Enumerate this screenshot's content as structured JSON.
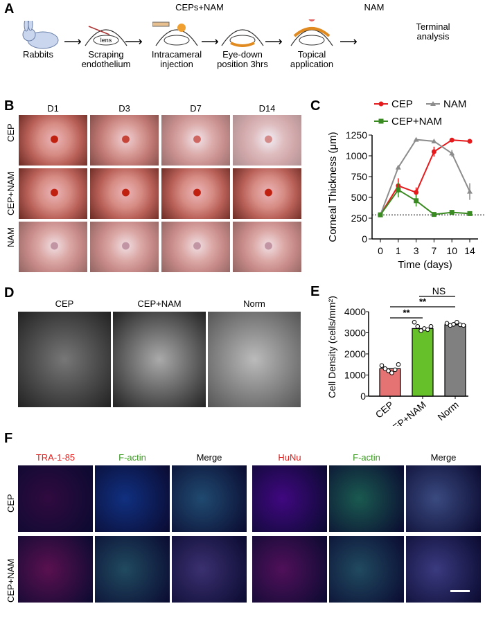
{
  "panel_labels": {
    "a": "A",
    "b": "B",
    "c": "C",
    "d": "D",
    "e": "E",
    "f": "F"
  },
  "panelA": {
    "steps": [
      "Rabbits",
      "Scraping\nendothelium",
      "Intracameral\ninjection",
      "Eye-down\nposition 3hrs",
      "Topical\napplication",
      "Terminal\nanalysis"
    ],
    "lens": "lens",
    "top_labels": [
      "CEPs+NAM",
      "NAM"
    ]
  },
  "panelB": {
    "columns": [
      "D1",
      "D3",
      "D7",
      "D14"
    ],
    "rows": [
      "CEP",
      "CEP+NAM",
      "NAM"
    ]
  },
  "chart_data": [
    {
      "type": "line",
      "ylabel": "Corneal Thickness (μm)",
      "xlabel": "Time (days)",
      "categories": [
        "0",
        "1",
        "3",
        "7",
        "10",
        "14"
      ],
      "ylim": [
        0,
        1250
      ],
      "yticks": [
        0,
        250,
        500,
        750,
        1000,
        1250
      ],
      "reference_line": 290,
      "series": [
        {
          "name": "CEP",
          "color": "#e41a1c",
          "marker": "circle",
          "values": [
            290,
            640,
            560,
            1050,
            1190,
            1175
          ],
          "err": [
            15,
            90,
            60,
            60,
            15,
            15
          ]
        },
        {
          "name": "NAM",
          "color": "#8c8c8c",
          "marker": "triangle",
          "values": [
            290,
            860,
            1195,
            1175,
            1030,
            570
          ],
          "err": [
            15,
            20,
            15,
            15,
            40,
            100
          ]
        },
        {
          "name": "CEP+NAM",
          "color": "#3a8a22",
          "marker": "square",
          "values": [
            290,
            590,
            460,
            295,
            320,
            305
          ],
          "err": [
            15,
            90,
            70,
            15,
            15,
            15
          ]
        }
      ]
    },
    {
      "type": "bar",
      "ylabel": "Cell Density (cells/mm²)",
      "categories": [
        "CEP",
        "CEP+NAM",
        "Norm"
      ],
      "values": [
        1300,
        3200,
        3380
      ],
      "colors": [
        "#e57373",
        "#66c02a",
        "#808080"
      ],
      "ylim": [
        0,
        4000
      ],
      "yticks": [
        0,
        1000,
        2000,
        3000,
        4000
      ],
      "points": [
        [
          1450,
          1300,
          1200,
          1100,
          1250,
          1500
        ],
        [
          3500,
          3300,
          3100,
          3200,
          3150,
          3300
        ],
        [
          3450,
          3350,
          3400,
          3500,
          3380,
          3350
        ]
      ],
      "significance": [
        {
          "from": "CEP",
          "to": "CEP+NAM",
          "label": "**"
        },
        {
          "from": "CEP",
          "to": "Norm",
          "label": "**"
        },
        {
          "from": "CEP+NAM",
          "to": "Norm",
          "label": "NS"
        }
      ]
    }
  ],
  "panelD": {
    "columns": [
      "CEP",
      "CEP+NAM",
      "Norm"
    ]
  },
  "panelF": {
    "columns": [
      {
        "label": "TRA-1-85",
        "color": "#e0201e"
      },
      {
        "label": "F-actin",
        "color": "#3a9a20"
      },
      {
        "label": "Merge",
        "color": "#000"
      },
      {
        "label": "HuNu",
        "color": "#e0201e"
      },
      {
        "label": "F-actin",
        "color": "#3a9a20"
      },
      {
        "label": "Merge",
        "color": "#000"
      }
    ],
    "rows": [
      "CEP",
      "CEP+NAM"
    ]
  }
}
